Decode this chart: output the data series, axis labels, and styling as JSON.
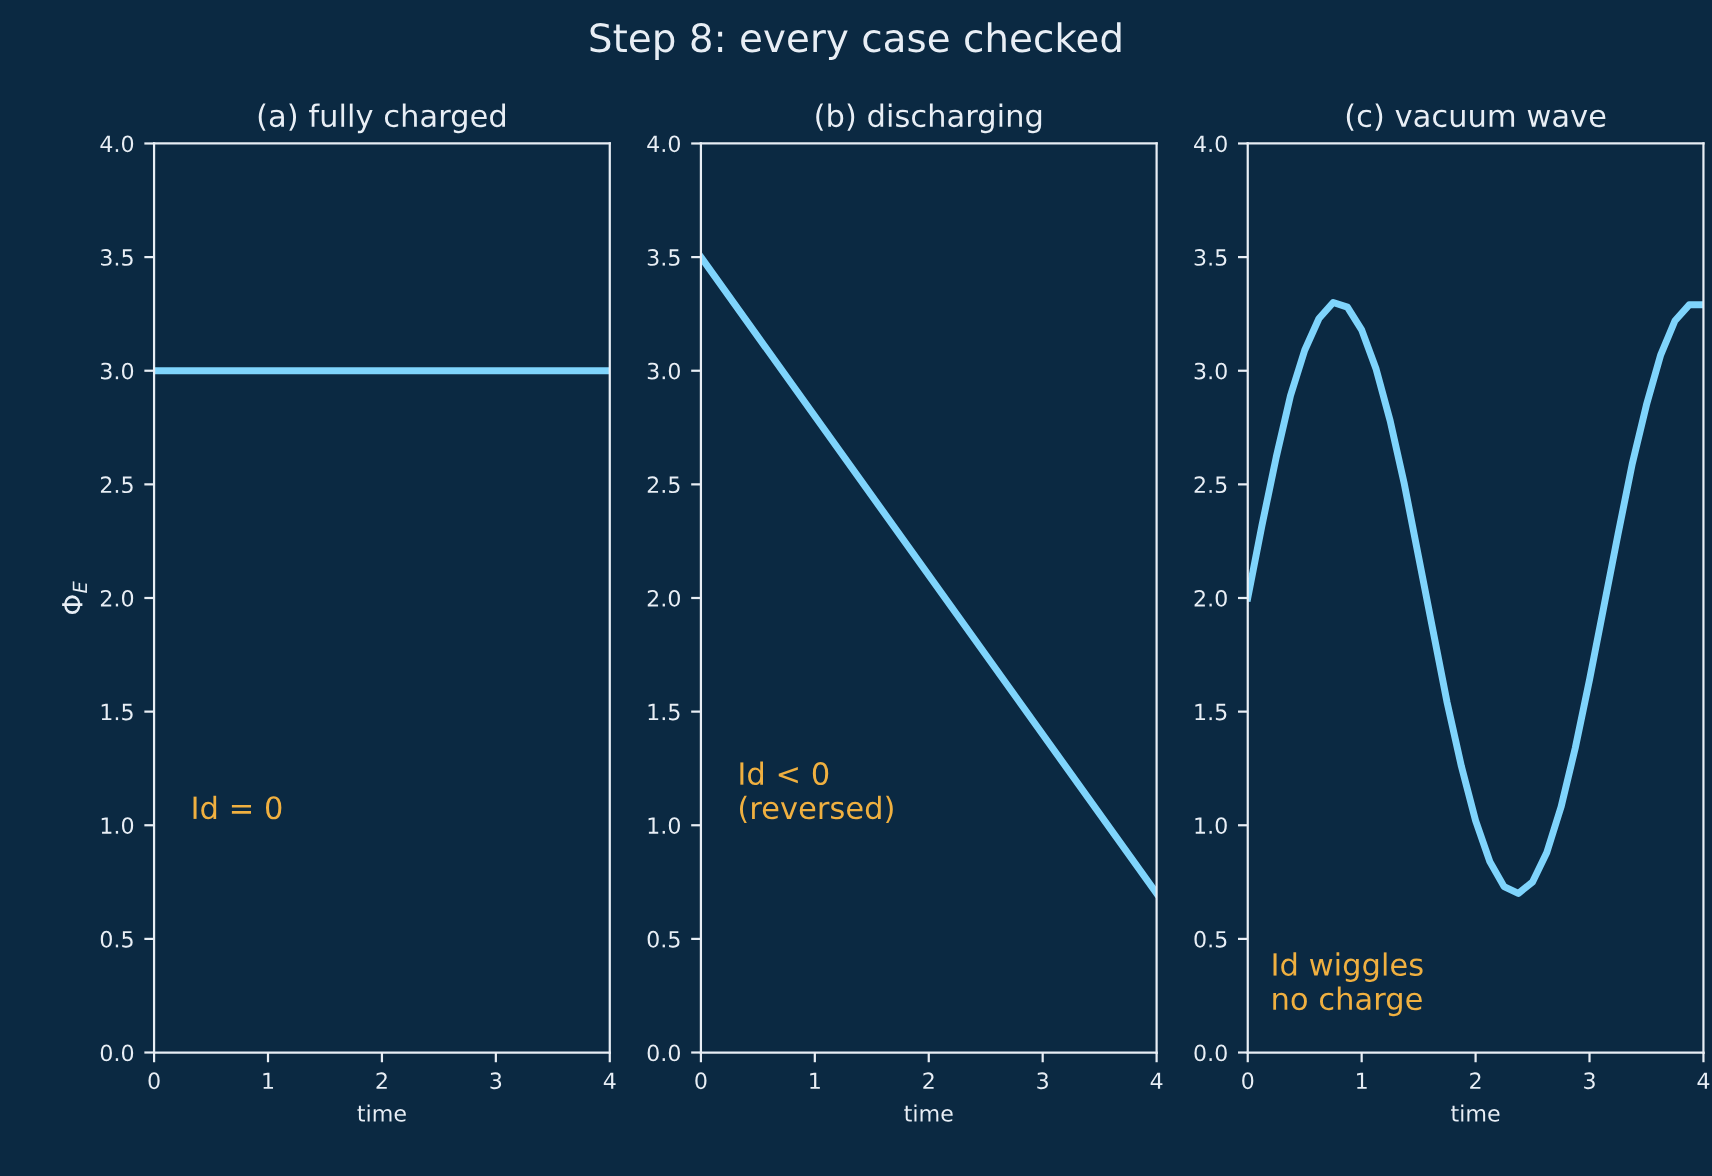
{
  "chart_data": [
    {
      "type": "line",
      "title": "(a) fully charged",
      "xlabel": "time",
      "ylabel": "Φ$_{E}$",
      "annotations": [
        "Step 8: every case checked",
        "Id = 0"
      ],
      "x": [
        0,
        4
      ],
      "series": [
        {
          "color": "#7fd4fc",
          "values": [
            3.0,
            3.0
          ]
        }
      ],
      "xlim": [
        0,
        4
      ],
      "ylim": [
        0,
        4
      ],
      "xticks": [
        0,
        1,
        2,
        3,
        4
      ],
      "yticks": [
        {
          "value": 0,
          "label": "0.0"
        },
        0.5,
        {
          "value": 1,
          "label": "1.0"
        },
        1.5,
        {
          "value": 2,
          "label": "2.0"
        },
        2.5,
        {
          "value": 3,
          "label": "3.0"
        },
        3.5,
        {
          "value": 4,
          "label": "4.0"
        }
      ],
      "grid": false
    },
    {
      "type": "line",
      "title": "(b) discharging",
      "xlabel": "time",
      "annotations": [
        "Id < 0\n(reversed)"
      ],
      "x": [
        0,
        4
      ],
      "series": [
        {
          "color": "#7fd4fc",
          "values": [
            3.5,
            0.7
          ]
        }
      ],
      "xlim": [
        0,
        4
      ],
      "ylim": [
        0,
        4
      ],
      "xticks": [
        0,
        1,
        2,
        3,
        4
      ],
      "yticks": [
        {
          "value": 0,
          "label": "0.0"
        },
        0.5,
        {
          "value": 1,
          "label": "1.0"
        },
        1.5,
        {
          "value": 2,
          "label": "2.0"
        },
        2.5,
        {
          "value": 3,
          "label": "3.0"
        },
        3.5,
        {
          "value": 4,
          "label": "4.0"
        }
      ],
      "grid": false
    },
    {
      "type": "line",
      "title": "(c) vacuum wave",
      "xlabel": "time",
      "annotations": [
        "Id wiggles\nno charge"
      ],
      "x": [
        0,
        0.125,
        0.25,
        0.375,
        0.5,
        0.625,
        0.75,
        0.875,
        1.0,
        1.125,
        1.25,
        1.375,
        1.5,
        1.625,
        1.75,
        1.875,
        2.0,
        2.125,
        2.25,
        2.375,
        2.5,
        2.625,
        2.75,
        2.875,
        3.0,
        3.125,
        3.25,
        3.375,
        3.5,
        3.625,
        3.75,
        3.875,
        4.0
      ],
      "series": [
        {
          "color": "#7fd4fc",
          "values": [
            2.0,
            2.32,
            2.62,
            2.89,
            3.09,
            3.23,
            3.3,
            3.28,
            3.18,
            3.01,
            2.78,
            2.5,
            2.18,
            1.86,
            1.54,
            1.26,
            1.02,
            0.84,
            0.73,
            0.7,
            0.75,
            0.88,
            1.08,
            1.34,
            1.64,
            1.96,
            2.28,
            2.59,
            2.85,
            3.07,
            3.22,
            3.29,
            3.29
          ]
        }
      ],
      "xlim": [
        0,
        4
      ],
      "ylim": [
        0,
        4
      ],
      "xticks": [
        0,
        1,
        2,
        3,
        4
      ],
      "yticks": [
        {
          "value": 0,
          "label": "0.0"
        },
        0.5,
        {
          "value": 1,
          "label": "1.0"
        },
        1.5,
        {
          "value": 2,
          "label": "2.0"
        },
        2.5,
        {
          "value": 3,
          "label": "3.0"
        },
        3.5,
        {
          "value": 4,
          "label": "4.0"
        }
      ],
      "grid": false
    }
  ]
}
